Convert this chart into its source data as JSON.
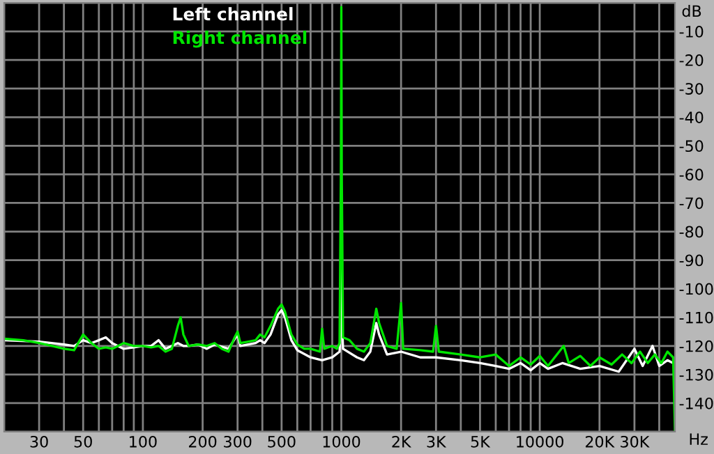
{
  "chart_data": {
    "type": "line",
    "xlabel": "Hz",
    "ylabel": "dB",
    "log": "x",
    "grid": true,
    "legend": "top left",
    "xlim": [
      20,
      48000
    ],
    "ylim": [
      -150,
      0
    ],
    "xticks": [
      {
        "value": 20,
        "label": null
      },
      30,
      {
        "value": 40,
        "label": null
      },
      50,
      {
        "value": 60,
        "label": null
      },
      {
        "value": 70,
        "label": null
      },
      {
        "value": 80,
        "label": null
      },
      {
        "value": 90,
        "label": null
      },
      100,
      200,
      300,
      {
        "value": 400,
        "label": null
      },
      500,
      {
        "value": 600,
        "label": null
      },
      {
        "value": 700,
        "label": null
      },
      {
        "value": 800,
        "label": null
      },
      {
        "value": 900,
        "label": null
      },
      1000,
      {
        "value": 2000,
        "label": "2K"
      },
      {
        "value": 3000,
        "label": "3K"
      },
      {
        "value": 4000,
        "label": null
      },
      {
        "value": 5000,
        "label": "5K"
      },
      {
        "value": 6000,
        "label": null
      },
      {
        "value": 7000,
        "label": null
      },
      {
        "value": 8000,
        "label": null
      },
      {
        "value": 9000,
        "label": null
      },
      10000,
      {
        "value": 20000,
        "label": "20K"
      },
      {
        "value": 30000,
        "label": "30K"
      },
      {
        "value": 40000,
        "label": null
      }
    ],
    "yticks": [
      {
        "value": 0,
        "label": null
      },
      -10,
      -20,
      -30,
      -40,
      -50,
      -60,
      -70,
      -80,
      -90,
      -100,
      -110,
      -120,
      -130,
      -140,
      {
        "value": -150,
        "label": null
      }
    ],
    "series": [
      {
        "name": "Left channel",
        "color": "#ffffff",
        "x": [
          20,
          30,
          40,
          45,
          50,
          55,
          60,
          65,
          70,
          80,
          90,
          100,
          110,
          120,
          130,
          150,
          160,
          170,
          190,
          210,
          230,
          270,
          300,
          310,
          370,
          390,
          410,
          440,
          480,
          500,
          520,
          560,
          600,
          700,
          800,
          900,
          980,
          995,
          1000,
          1005,
          1020,
          1200,
          1300,
          1400,
          1500,
          1550,
          1700,
          2000,
          2500,
          3000,
          4000,
          5000,
          6000,
          7000,
          8000,
          9000,
          10000,
          11000,
          13000,
          16000,
          20000,
          25000,
          30000,
          33000,
          37000,
          40000,
          44000,
          47000
        ],
        "values": [
          -118,
          -118.5,
          -119.5,
          -120,
          -118,
          -119,
          -118,
          -117,
          -119,
          -121,
          -120.5,
          -120,
          -120,
          -118,
          -121,
          -119,
          -120,
          -120,
          -119.5,
          -121,
          -119.5,
          -121,
          -116,
          -120,
          -119,
          -118,
          -119,
          -116,
          -109,
          -107.5,
          -110,
          -118,
          -121.5,
          -124,
          -125,
          -124,
          -122,
          -110,
          -92,
          -110,
          -121,
          -124,
          -125,
          -122,
          -112,
          -116,
          -123,
          -122,
          -124,
          -124,
          -125,
          -126,
          -127,
          -128,
          -126,
          -128.5,
          -126,
          -128,
          -126,
          -128,
          -127,
          -129,
          -121,
          -127,
          -120,
          -127,
          -125,
          -126
        ]
      },
      {
        "name": "Right channel",
        "color": "#00e600",
        "x": [
          20,
          25,
          30,
          35,
          40,
          45,
          50,
          55,
          60,
          65,
          70,
          80,
          90,
          100,
          110,
          120,
          130,
          140,
          150,
          155,
          160,
          170,
          190,
          210,
          230,
          250,
          270,
          290,
          300,
          310,
          340,
          370,
          390,
          410,
          440,
          480,
          500,
          520,
          560,
          600,
          650,
          700,
          780,
          800,
          820,
          900,
          950,
          980,
          995,
          1000,
          1005,
          1020,
          1100,
          1200,
          1300,
          1400,
          1500,
          1550,
          1700,
          1900,
          2000,
          2050,
          2500,
          2900,
          3000,
          3100,
          4000,
          5000,
          6000,
          7000,
          8000,
          9000,
          10000,
          11000,
          13200,
          14000,
          16000,
          18000,
          20000,
          23000,
          26000,
          29000,
          32000,
          35000,
          38000,
          41000,
          44000,
          47000,
          48000
        ],
        "values": [
          -117.5,
          -118,
          -119,
          -120,
          -121,
          -121.5,
          -116,
          -119,
          -121,
          -120.5,
          -121,
          -119,
          -120,
          -120,
          -120.5,
          -120,
          -122,
          -121,
          -113,
          -110,
          -116,
          -120,
          -119.5,
          -120,
          -119,
          -121,
          -122,
          -117,
          -115,
          -119,
          -118.5,
          -118,
          -116,
          -117,
          -113,
          -107,
          -105.5,
          -108,
          -116,
          -119.5,
          -121,
          -121,
          -122,
          -114,
          -121,
          -120,
          -121,
          -119,
          -60,
          -1.5,
          -60,
          -117,
          -118,
          -121,
          -122,
          -119,
          -107,
          -112,
          -120,
          -121,
          -105,
          -121,
          -121.5,
          -122,
          -113,
          -122,
          -123,
          -124,
          -123,
          -127,
          -124,
          -126.5,
          -123.5,
          -127,
          -120,
          -126,
          -123.5,
          -127,
          -124,
          -126.5,
          -123,
          -126,
          -122,
          -126,
          -123,
          -126,
          -122,
          -124,
          -150
        ]
      }
    ]
  }
}
